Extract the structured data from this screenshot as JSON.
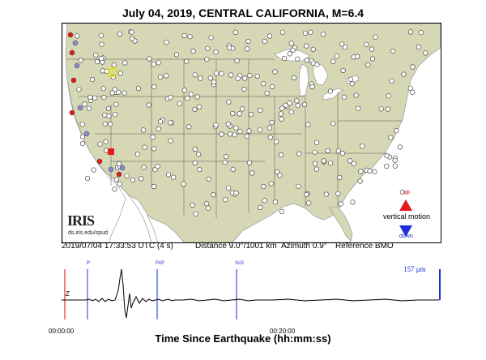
{
  "title": "July 04, 2019, CENTRAL CALIFORNIA, M=6.4",
  "logo": {
    "text": "IRIS",
    "url": "ds.iris.edu/spud"
  },
  "legend": {
    "up": "up",
    "down": "down",
    "caption": "vertical motion"
  },
  "info": {
    "datetime": "2019/07/04 17:33:53 UTC (4 s)",
    "distance": "Distance  9.0°/1001 km",
    "azimuth": "Azimuth  0.9°",
    "reference": "Reference BMO"
  },
  "seismogram": {
    "phases": [
      "P",
      "PcP",
      "ScS"
    ],
    "amplitude": "157 μm",
    "component": "Z"
  },
  "time_axis": {
    "ticks": [
      "00:00:00",
      "00:20:00"
    ],
    "label": "Time Since Earthquake (hh:mm:ss)"
  },
  "colors": {
    "land": "#d6d7b4",
    "water": "#ffffff",
    "station": "#ffffff",
    "epicenter": "#e11a1a",
    "reference_station": "#e8e000",
    "up_arrow": "#e11a1a",
    "down_arrow": "#1a2fd6",
    "trace_phase": "#1a2fd6"
  }
}
